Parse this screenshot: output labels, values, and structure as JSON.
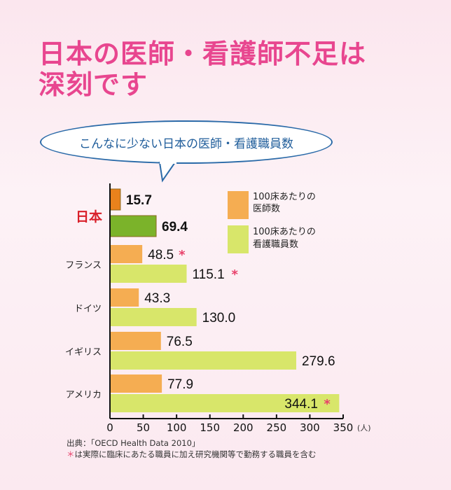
{
  "title_line1": "日本の医師・看護師不足は",
  "title_line2": "深刻です",
  "bubble": "こんなに少ない日本の医師・看護職員数",
  "chart_data": {
    "type": "bar",
    "orientation": "horizontal",
    "categories": [
      "日本",
      "フランス",
      "ドイツ",
      "イギリス",
      "アメリカ"
    ],
    "series": [
      {
        "name": "100床あたりの医師数",
        "values": [
          15.7,
          48.5,
          43.3,
          76.5,
          77.9
        ],
        "asterisk": [
          false,
          true,
          false,
          false,
          false
        ],
        "color": "#f5ad52",
        "highlight_color": "#e9821c"
      },
      {
        "name": "100床あたりの看護職員数",
        "values": [
          69.4,
          115.1,
          130.0,
          279.6,
          344.1
        ],
        "asterisk": [
          false,
          true,
          false,
          false,
          true
        ],
        "color": "#d8e66a",
        "highlight_color": "#7bb32a"
      }
    ],
    "legend": [
      "100床あたりの",
      "医師数",
      "100床あたりの",
      "看護職員数"
    ],
    "xlim": [
      0,
      350
    ],
    "xticks": [
      0,
      50,
      100,
      150,
      200,
      250,
      300,
      350
    ],
    "xunit": "(人)",
    "legend_position": "top-right",
    "asterisk_color": "#e8406a"
  },
  "source": "出典：「OECD Health Data 2010」",
  "note_mark": "＊",
  "note": "は実際に臨床にあたる職員に加え研究機関等で勤務する職員を含む"
}
